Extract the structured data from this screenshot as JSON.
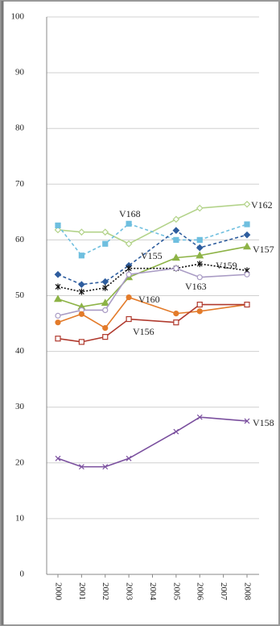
{
  "chart_data": {
    "type": "line",
    "x": [
      2000,
      2001,
      2002,
      2003,
      2005,
      2006,
      2008
    ],
    "xlim": [
      2000,
      2008
    ],
    "xticks": [
      2000,
      2001,
      2002,
      2003,
      2004,
      2005,
      2006,
      2007,
      2008
    ],
    "ylim": [
      0,
      100
    ],
    "yticks": [
      0,
      10,
      20,
      30,
      40,
      50,
      60,
      70,
      80,
      90,
      100
    ],
    "grid": true,
    "series": [
      {
        "name": "V162",
        "color": "#b3d38a",
        "marker": "open-diamond",
        "linestyle": "solid",
        "values": [
          61.8,
          61.4,
          61.4,
          59.3,
          63.7,
          65.7,
          66.4
        ]
      },
      {
        "name": "V168",
        "color": "#6fbfdf",
        "marker": "square",
        "linestyle": "dashed",
        "values": [
          62.6,
          57.2,
          59.3,
          62.9,
          60,
          60,
          62.8
        ]
      },
      {
        "name": "V155",
        "color": "#2e5d9e",
        "marker": "diamond",
        "linestyle": "dashed",
        "values": [
          53.8,
          52,
          52.5,
          55.4,
          61.7,
          58.6,
          60.9
        ]
      },
      {
        "name": "V157",
        "color": "#8db346",
        "marker": "triangle",
        "linestyle": "solid",
        "values": [
          49.4,
          48,
          48.7,
          53.3,
          56.8,
          57.2,
          58.8
        ]
      },
      {
        "name": "V159",
        "color": "#111111",
        "marker": "star",
        "linestyle": "dotted",
        "values": [
          51.6,
          50.7,
          51.4,
          54.9,
          54.9,
          55.7,
          54.5
        ]
      },
      {
        "name": "V163",
        "color": "#a99bc4",
        "marker": "open-circle",
        "linestyle": "solid",
        "values": [
          46.4,
          47.4,
          47.4,
          53.8,
          54.9,
          53.3,
          53.8
        ]
      },
      {
        "name": "V160",
        "color": "#e37b2a",
        "marker": "circle",
        "linestyle": "solid",
        "values": [
          45.2,
          46.7,
          44.2,
          49.7,
          46.8,
          47.2,
          48.4
        ]
      },
      {
        "name": "V156",
        "color": "#b03a2e",
        "marker": "open-square",
        "linestyle": "solid",
        "values": [
          42.3,
          41.7,
          42.6,
          45.8,
          45.2,
          48.4,
          48.4
        ]
      },
      {
        "name": "V158",
        "color": "#7a4f9e",
        "marker": "x",
        "linestyle": "solid",
        "values": [
          20.8,
          19.3,
          19.3,
          20.8,
          25.6,
          28.2,
          27.5
        ]
      }
    ]
  }
}
